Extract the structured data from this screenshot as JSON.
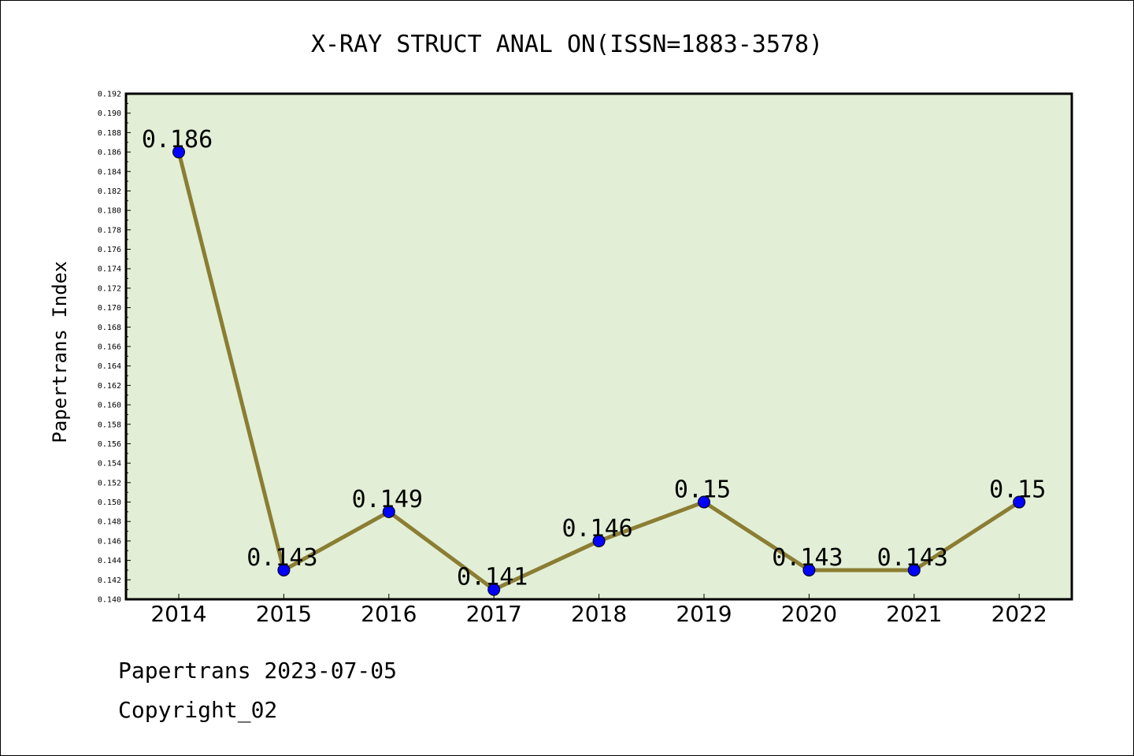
{
  "chart_data": {
    "type": "line",
    "title": "X-RAY STRUCT ANAL ON(ISSN=1883-3578)",
    "xlabel": "",
    "ylabel": "Papertrans Index",
    "categories": [
      "2014",
      "2015",
      "2016",
      "2017",
      "2018",
      "2019",
      "2020",
      "2021",
      "2022"
    ],
    "series": [
      {
        "values": [
          0.186,
          0.143,
          0.149,
          0.141,
          0.146,
          0.15,
          0.143,
          0.143,
          0.15
        ],
        "labels": [
          "0.186",
          "0.143",
          "0.149",
          "0.141",
          "0.146",
          "0.15",
          "0.143",
          "0.143",
          "0.15"
        ]
      }
    ],
    "ylim": [
      0.14,
      0.192
    ],
    "ytick_step": 0.002,
    "yticks": [
      "0.140",
      "0.142",
      "0.144",
      "0.146",
      "0.148",
      "0.150",
      "0.152",
      "0.154",
      "0.156",
      "0.158",
      "0.160",
      "0.162",
      "0.164",
      "0.166",
      "0.168",
      "0.170",
      "0.172",
      "0.174",
      "0.176",
      "0.178",
      "0.180",
      "0.182",
      "0.184",
      "0.186",
      "0.188",
      "0.190",
      "0.192"
    ],
    "grid": false,
    "legend": false,
    "colors": {
      "plot_background": "#e2efd6",
      "line": "#8b7d33",
      "marker": "#0000ff",
      "axis": "#000000"
    }
  },
  "footer": {
    "source_line": "Papertrans 2023-07-05",
    "copyright": "Copyright_02"
  }
}
